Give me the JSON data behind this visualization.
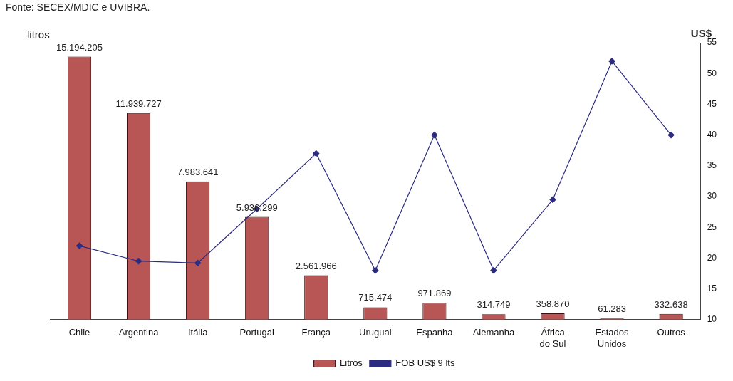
{
  "chart_data": {
    "type": "bar",
    "ylabel": "litros",
    "y2label": "US$",
    "annotations": [
      "Fonte: SECEX/MDIC e UVIBRA."
    ],
    "categories": [
      "Chile",
      "Argentina",
      "Itália",
      "Portugal",
      "França",
      "Uruguai",
      "Espanha",
      "Alemanha",
      "África do Sul",
      "Estados Unidos",
      "Outros"
    ],
    "series": [
      {
        "name": "Litros",
        "color": "#b85555",
        "values": [
          15194205,
          11939727,
          7983641,
          5936299,
          2561966,
          715474,
          971869,
          314749,
          358870,
          61283,
          332638
        ],
        "value_labels": [
          "15.194.205",
          "11.939.727",
          "7.983.641",
          "5.936.299",
          "2.561.966",
          "715.474",
          "971.869",
          "314.749",
          "358.870",
          "61.283",
          "332.638"
        ]
      },
      {
        "name": "FOB US$ 9 lts",
        "type": "line",
        "axis": "y2",
        "color": "#2b2b80",
        "values": [
          22,
          19.5,
          19.2,
          28,
          37,
          18,
          40,
          18,
          29.5,
          52,
          40
        ]
      }
    ],
    "y2lim": [
      10,
      55
    ],
    "y2ticks": [
      10,
      15,
      20,
      25,
      30,
      35,
      40,
      45,
      50,
      55
    ],
    "grid": false,
    "legend": "bottom",
    "marker": "diamond",
    "line_style": "solid"
  }
}
